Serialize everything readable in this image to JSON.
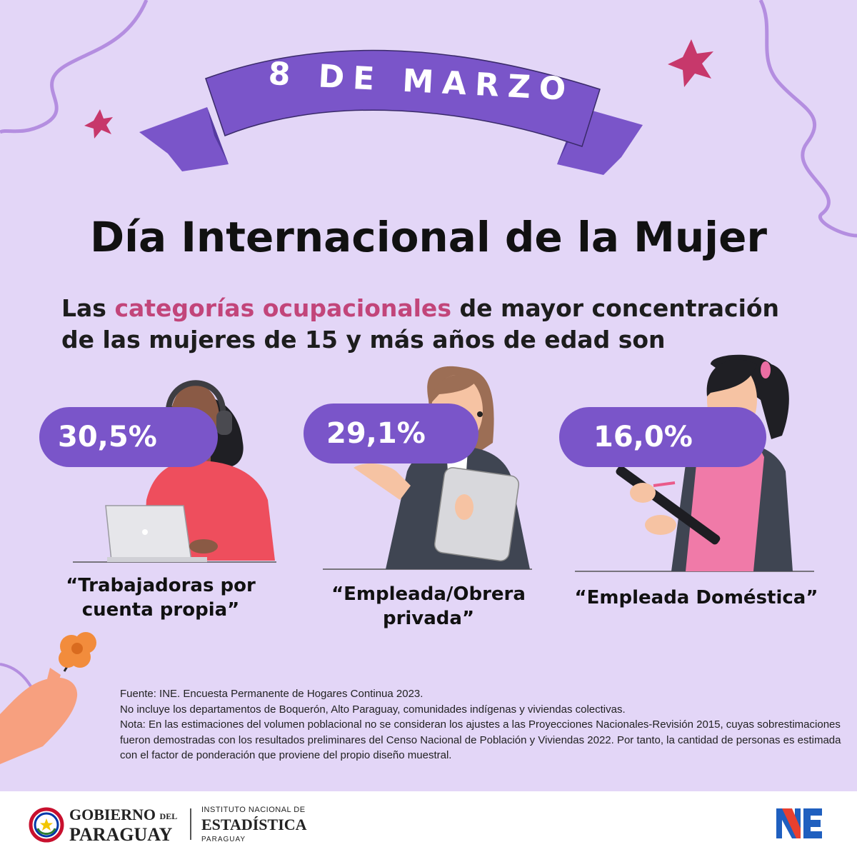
{
  "ribbon": {
    "text": "8 DE MARZO"
  },
  "title": "Día Internacional de la Mujer",
  "subtitle": {
    "prefix": "Las ",
    "highlight": "categorías ocupacionales",
    "suffix": " de mayor concentración de las mujeres de 15 y más años de edad son"
  },
  "categories": [
    {
      "percent": "30,5%",
      "label": "“Trabajadoras por cuenta propia”"
    },
    {
      "percent": "29,1%",
      "label": "“Empleada/Obrera privada”"
    },
    {
      "percent": "16,0%",
      "label": "“Empleada Doméstica”"
    }
  ],
  "notes": {
    "source": "Fuente: INE. Encuesta Permanente de Hogares Continua 2023.",
    "exclusion": "No incluye los departamentos de Boquerón, Alto Paraguay, comunidades indígenas y viviendas colectivas.",
    "note": "Nota: En las estimaciones del volumen poblacional no se consideran los ajustes a las Proyecciones Nacionales-Revisión 2015, cuyas sobrestimaciones fueron demostradas con los resultados preliminares del Censo Nacional de Población y Viviendas 2022. Por tanto, la cantidad de personas es estimada con el factor de ponderación que proviene del propio diseño muestral."
  },
  "footer": {
    "gob_line1": "GOBIERNO",
    "gob_del": "DEL",
    "gob_line2": "PARAGUAY",
    "ine_line1": "INSTITUTO NACIONAL DE",
    "ine_line2": "ESTADÍSTICA",
    "ine_line3": "PARAGUAY",
    "ine_logo": "NE"
  },
  "colors": {
    "background": "#e3d6f7",
    "ribbon": "#7a55c9",
    "highlight": "#c2457a",
    "pill": "#7a55c9",
    "star": "#c7386b"
  },
  "icons": [
    "star-icon",
    "flower-icon",
    "paraguay-seal-icon",
    "ine-logo-icon"
  ]
}
